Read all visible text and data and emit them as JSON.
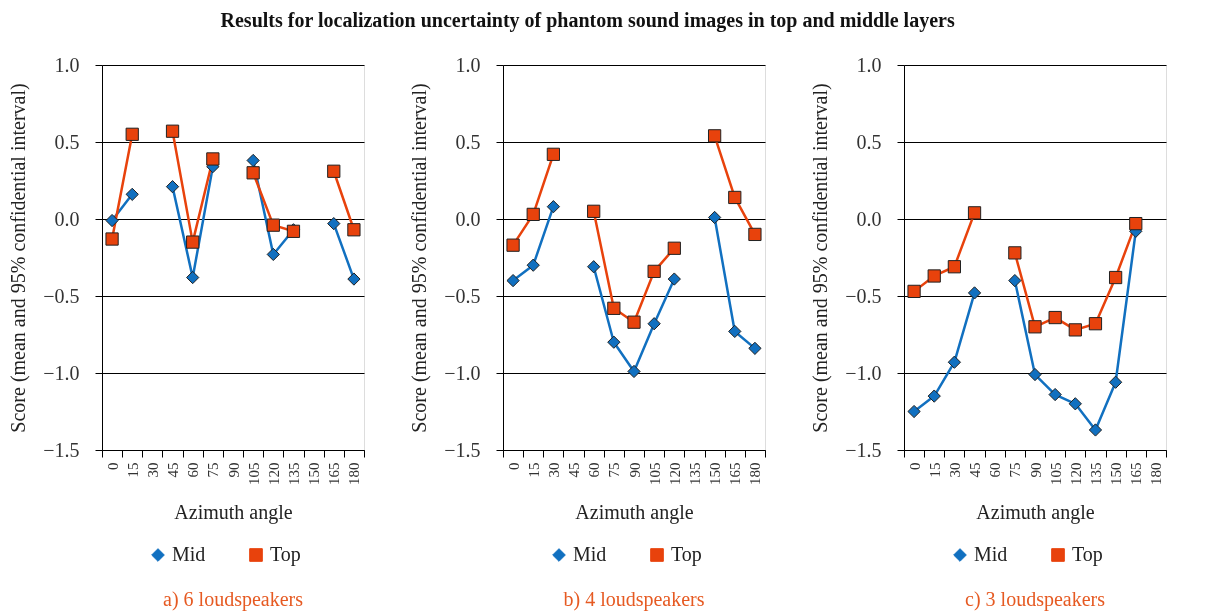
{
  "chart_data": [
    {
      "type": "line",
      "title": "Results for localization uncertainty of phantom sound images in top and middle layers",
      "xlabel": "Azimuth angle",
      "ylabel": "Score (mean and 95% confidential interval)",
      "categories": [
        "0",
        "15",
        "30",
        "45",
        "60",
        "75",
        "90",
        "105",
        "120",
        "135",
        "150",
        "165",
        "180"
      ],
      "series": [
        {
          "name": "Mid",
          "color": "#1170c0",
          "marker": "diamond",
          "values": [
            -0.01,
            0.16,
            null,
            0.21,
            -0.38,
            0.34,
            null,
            0.38,
            -0.23,
            -0.07,
            null,
            -0.03,
            -0.39
          ]
        },
        {
          "name": "Top",
          "color": "#e8420c",
          "marker": "square",
          "values": [
            -0.13,
            0.55,
            null,
            0.57,
            -0.15,
            0.39,
            null,
            0.3,
            -0.04,
            -0.08,
            null,
            0.31,
            -0.07
          ]
        }
      ],
      "ylim": [
        -1.5,
        1.0
      ],
      "yticks": [
        {
          "value": -1.5,
          "label": "−1.5"
        },
        {
          "value": -1.0,
          "label": "−1.0"
        },
        {
          "value": -0.5,
          "label": "−0.5"
        },
        {
          "value": 0.0,
          "label": "0.0"
        },
        {
          "value": 0.5,
          "label": "0.5"
        },
        {
          "value": 1.0,
          "label": "1.0"
        }
      ],
      "grid": "y",
      "legend": "bottom",
      "line_style": "solid",
      "annotations": [
        "a) 6 loudspeakers"
      ]
    },
    {
      "type": "line",
      "xlabel": "Azimuth angle",
      "ylabel": "Score (mean and 95% confidential interval)",
      "categories": [
        "0",
        "15",
        "30",
        "45",
        "60",
        "75",
        "90",
        "105",
        "120",
        "135",
        "150",
        "165",
        "180"
      ],
      "series": [
        {
          "name": "Mid",
          "color": "#1170c0",
          "marker": "diamond",
          "values": [
            -0.4,
            -0.3,
            0.08,
            null,
            -0.31,
            -0.8,
            -0.99,
            -0.68,
            -0.39,
            null,
            0.01,
            -0.73,
            -0.84
          ]
        },
        {
          "name": "Top",
          "color": "#e8420c",
          "marker": "square",
          "values": [
            -0.17,
            0.03,
            0.42,
            null,
            0.05,
            -0.58,
            -0.67,
            -0.34,
            -0.19,
            null,
            0.54,
            0.14,
            -0.1
          ]
        }
      ],
      "ylim": [
        -1.5,
        1.0
      ],
      "yticks": [
        {
          "value": -1.5,
          "label": "−1.5"
        },
        {
          "value": -1.0,
          "label": "−1.0"
        },
        {
          "value": -0.5,
          "label": "−0.5"
        },
        {
          "value": 0.0,
          "label": "0.0"
        },
        {
          "value": 0.5,
          "label": "0.5"
        },
        {
          "value": 1.0,
          "label": "1.0"
        }
      ],
      "grid": "y",
      "legend": "bottom",
      "line_style": "solid",
      "annotations": [
        "b) 4 loudspeakers"
      ]
    },
    {
      "type": "line",
      "xlabel": "Azimuth angle",
      "ylabel": "Score (mean and 95% confidential interval)",
      "categories": [
        "0",
        "15",
        "30",
        "45",
        "60",
        "75",
        "90",
        "105",
        "120",
        "135",
        "150",
        "165",
        "180"
      ],
      "series": [
        {
          "name": "Mid",
          "color": "#1170c0",
          "marker": "diamond",
          "values": [
            -1.25,
            -1.15,
            -0.93,
            -0.48,
            null,
            -0.4,
            -1.01,
            -1.14,
            -1.2,
            -1.37,
            -1.06,
            -0.08,
            null
          ]
        },
        {
          "name": "Top",
          "color": "#e8420c",
          "marker": "square",
          "values": [
            -0.47,
            -0.37,
            -0.31,
            0.04,
            null,
            -0.22,
            -0.7,
            -0.64,
            -0.72,
            -0.68,
            -0.38,
            -0.03,
            null
          ]
        }
      ],
      "ylim": [
        -1.5,
        1.0
      ],
      "yticks": [
        {
          "value": -1.5,
          "label": "−1.5"
        },
        {
          "value": -1.0,
          "label": "−1.0"
        },
        {
          "value": -0.5,
          "label": "−0.5"
        },
        {
          "value": 0.0,
          "label": "0.0"
        },
        {
          "value": 0.5,
          "label": "0.5"
        },
        {
          "value": 1.0,
          "label": "1.0"
        }
      ],
      "grid": "y",
      "legend": "bottom",
      "line_style": "solid",
      "annotations": [
        "c) 3 loudspeakers"
      ]
    }
  ]
}
